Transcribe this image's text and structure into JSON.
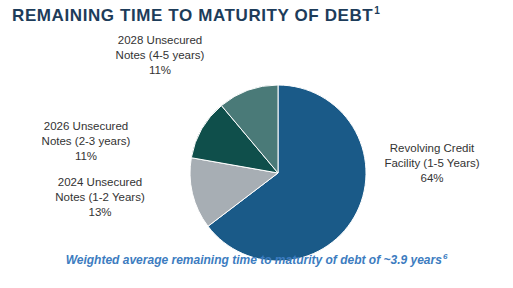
{
  "chart_data": {
    "type": "pie",
    "title": "REMAINING TIME TO MATURITY OF DEBT",
    "title_footnote": "1",
    "categories": [
      "Revolving Credit Facility (1-5 Years)",
      "2024 Unsecured Notes (1-2 Years)",
      "2026 Unsecured Notes (2-3 years)",
      "2028 Unsecured Notes (4-5 years)"
    ],
    "values": [
      64,
      13,
      11,
      11
    ],
    "value_labels": [
      "64%",
      "13%",
      "11%",
      "11%"
    ],
    "colors": [
      "#1a5a88",
      "#a7aeb4",
      "#0f4f4b",
      "#4a7a78"
    ],
    "data_labels": true,
    "footer": "Weighted average remaining time to maturity of debt of ~3.9 years",
    "footer_footnote": "6"
  }
}
